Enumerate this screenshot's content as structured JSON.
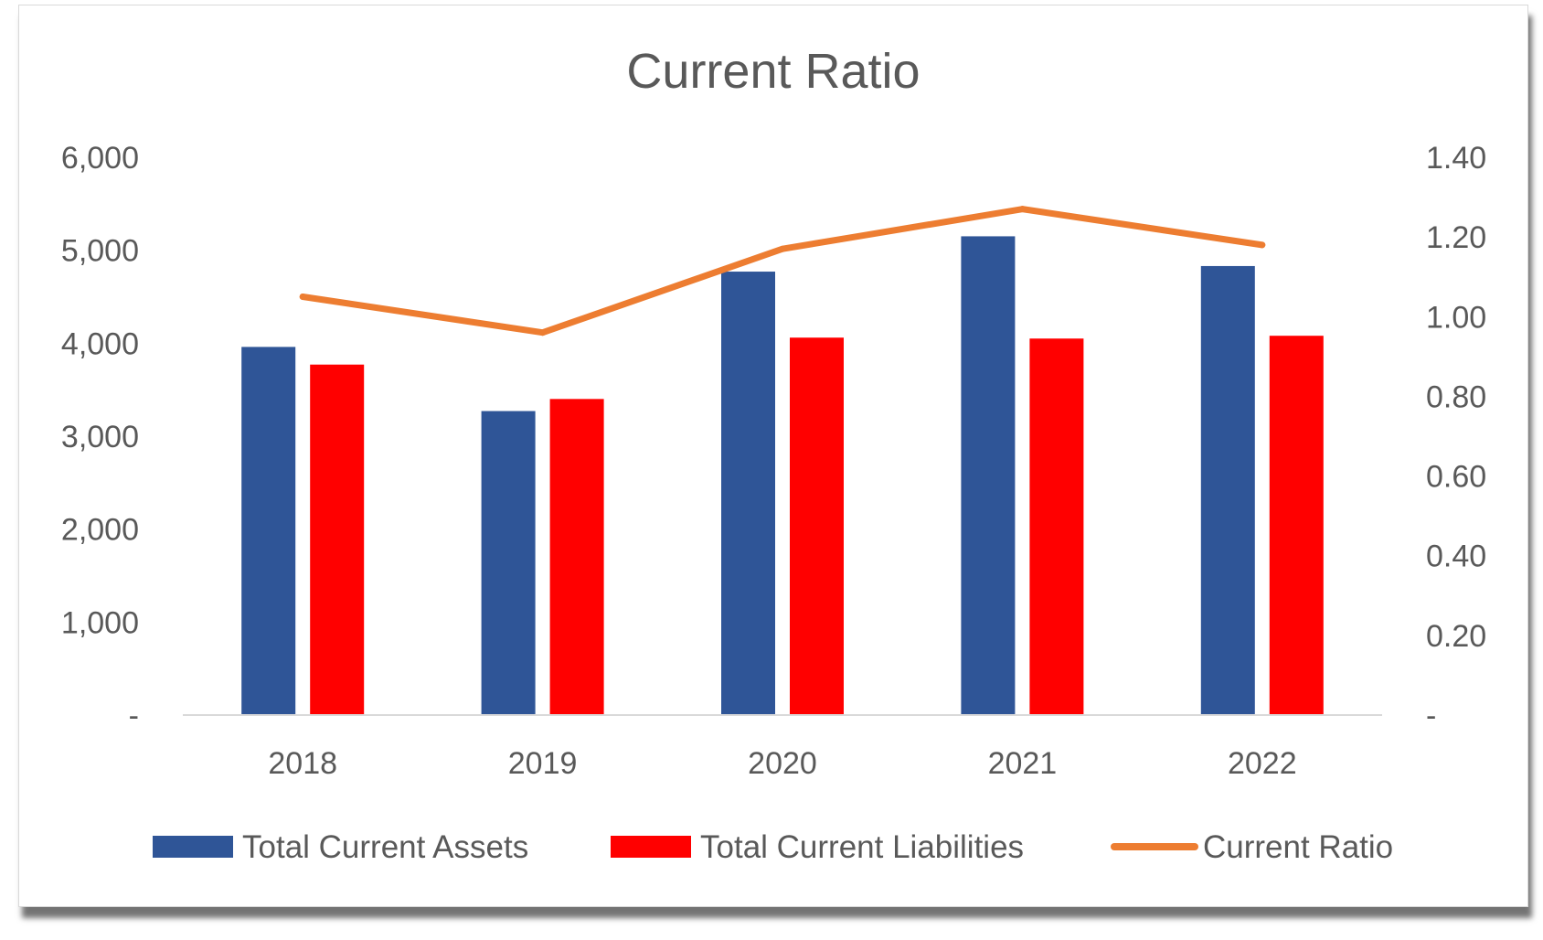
{
  "chart_data": {
    "type": "bar",
    "title": "Current Ratio",
    "categories": [
      "2018",
      "2019",
      "2020",
      "2021",
      "2022"
    ],
    "series": [
      {
        "name": "Total Current Assets",
        "kind": "bar",
        "axis": "left",
        "color": "#2F5597",
        "values": [
          3960,
          3270,
          4770,
          5150,
          4830
        ]
      },
      {
        "name": "Total Current Liabilities",
        "kind": "bar",
        "axis": "left",
        "color": "#FF0000",
        "values": [
          3770,
          3400,
          4060,
          4050,
          4080
        ]
      },
      {
        "name": "Current Ratio",
        "kind": "line",
        "axis": "right",
        "color": "#ED7D31",
        "values": [
          1.05,
          0.96,
          1.17,
          1.27,
          1.18
        ]
      }
    ],
    "y_left": {
      "range": [
        0,
        6000
      ],
      "ticks": [
        0,
        1000,
        2000,
        3000,
        4000,
        5000,
        6000
      ],
      "tick_labels": [
        "-",
        "1,000",
        "2,000",
        "3,000",
        "4,000",
        "5,000",
        "6,000"
      ]
    },
    "y_right": {
      "range": [
        0,
        1.4
      ],
      "ticks": [
        0,
        0.2,
        0.4,
        0.6,
        0.8,
        1.0,
        1.2,
        1.4
      ],
      "tick_labels": [
        "-",
        "0.20",
        "0.40",
        "0.60",
        "0.80",
        "1.00",
        "1.20",
        "1.40"
      ]
    },
    "grid": false,
    "legend_position": "bottom"
  }
}
